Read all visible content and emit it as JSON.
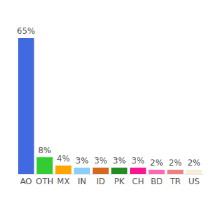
{
  "chart_data": {
    "type": "bar",
    "categories": [
      "AO",
      "OTH",
      "MX",
      "IN",
      "ID",
      "PK",
      "CH",
      "BD",
      "TR",
      "US"
    ],
    "values": [
      65,
      8,
      4,
      3,
      3,
      3,
      3,
      2,
      2,
      2
    ],
    "value_labels": [
      "65%",
      "8%",
      "4%",
      "3%",
      "3%",
      "3%",
      "3%",
      "2%",
      "2%",
      "2%"
    ],
    "colors": [
      "#4169e1",
      "#32cd32",
      "#ffa500",
      "#87cefa",
      "#d2691e",
      "#228b22",
      "#ff1493",
      "#ff69b4",
      "#f08080",
      "#faebd7"
    ],
    "ylim": [
      0,
      65
    ],
    "data_labels": true,
    "tick_labels": "x",
    "grid": false
  }
}
